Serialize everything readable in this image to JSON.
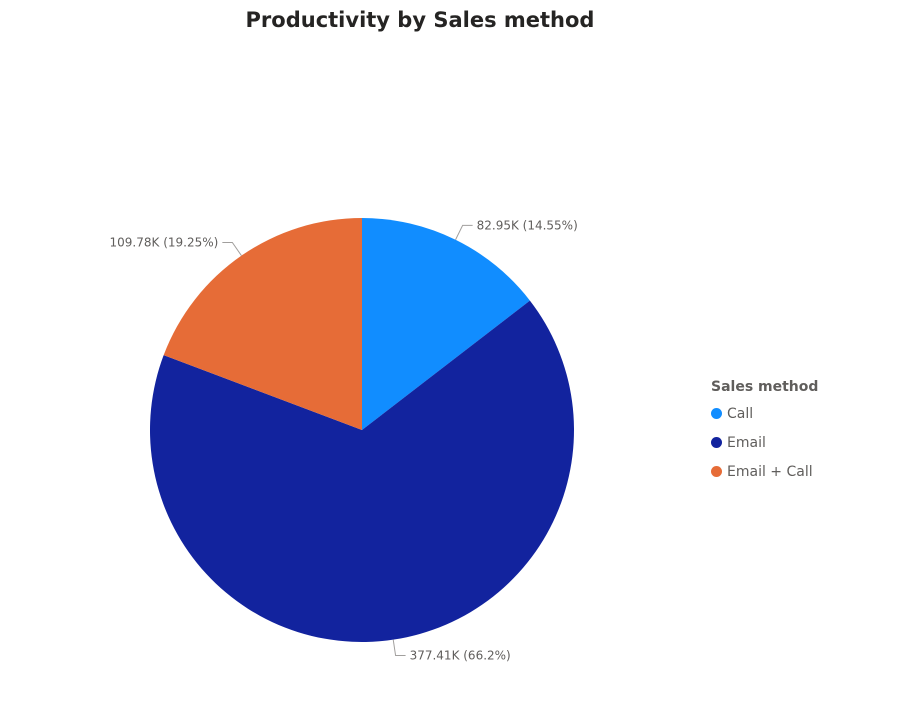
{
  "chart_data": {
    "type": "pie",
    "title": "Productivity by Sales method",
    "legend_title": "Sales method",
    "legend_position": "right",
    "slices": [
      {
        "name": "Call",
        "value": 82.95,
        "percent": 14.55,
        "label": "82.95K (14.55%)",
        "color": "#118dff"
      },
      {
        "name": "Email",
        "value": 377.41,
        "percent": 66.2,
        "label": "377.41K (66.2%)",
        "color": "#12239e"
      },
      {
        "name": "Email + Call",
        "value": 109.78,
        "percent": 19.25,
        "label": "109.78K (19.25%)",
        "color": "#e66c37"
      }
    ]
  }
}
